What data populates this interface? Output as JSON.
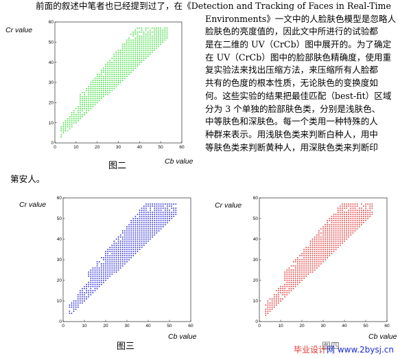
{
  "text": {
    "first_line": "前面的叙述中笔者也已经提到过了，在《Detection and Tracking of Faces in Real-Time",
    "right_lines": [
      "Environments》一文中的人脸肤色模型是忽略人",
      "脸肤色的亮度值的，因此文中所进行的试验都",
      "是在二维的 UV（CrCb）图中展开的。为了确定",
      "在 UV（CrCb）图中的脸部肤色精确度，使用重",
      "复实验法来找出压缩方法，来压缩所有人脸都",
      "共有的色度的根本性质，无论肤色的变换度如",
      "何。这些实验的结果把最佳匹配（best-fit）区域",
      "分为 3 个单独的脸部肤色类，分别是浅肤色、",
      "中等肤色和深肤色。每一个类用一种特殊的人",
      "种群来表示。用浅肤色类来判断白种人，用中",
      "等肤色类来判断黄种人，用深肤色类来判断印"
    ],
    "last_line": "第安人。"
  },
  "figures": {
    "fig2_caption": "图二",
    "fig3_caption": "图三",
    "fig4_caption_overlay": "图四"
  },
  "watermark": {
    "site_a": "毕业设计",
    "site_b": "网",
    "url": "www.2bysj.cn"
  },
  "chart_data": [
    {
      "type": "scatter",
      "name": "fig2",
      "color": "#3ddc3d",
      "xlabel": "Cb value",
      "ylabel": "Cr value",
      "xlim": [
        0,
        60
      ],
      "ylim": [
        0,
        60
      ],
      "xticks": [
        0,
        10,
        20,
        30,
        40,
        50,
        60
      ],
      "yticks": [
        0,
        10,
        20,
        30,
        40,
        50,
        60
      ],
      "region": "points fill the area above y≈x and below y≈57, x from ~3 to ~53",
      "x_range": [
        3,
        53
      ],
      "y_range": [
        3,
        57
      ]
    },
    {
      "type": "scatter",
      "name": "fig3",
      "color": "#2b2bd6",
      "xlabel": "Cb value",
      "ylabel": "Cr value",
      "xlim": [
        0,
        60
      ],
      "ylim": [
        0,
        60
      ],
      "xticks": [
        0,
        10,
        20,
        30,
        40,
        50,
        60
      ],
      "yticks": [
        0,
        10,
        20,
        30,
        40,
        50,
        60
      ],
      "x_range": [
        3,
        53
      ],
      "y_range": [
        3,
        57
      ]
    },
    {
      "type": "scatter",
      "name": "fig4",
      "color": "#e03535",
      "xlabel": "Cb value",
      "ylabel": "Cr value",
      "xlim": [
        0,
        60
      ],
      "ylim": [
        0,
        60
      ],
      "xticks": [
        0,
        10,
        20,
        30,
        40,
        50,
        60
      ],
      "yticks": [
        0,
        10,
        20,
        30,
        40,
        50,
        60
      ],
      "x_range": [
        3,
        53
      ],
      "y_range": [
        3,
        57
      ]
    }
  ]
}
